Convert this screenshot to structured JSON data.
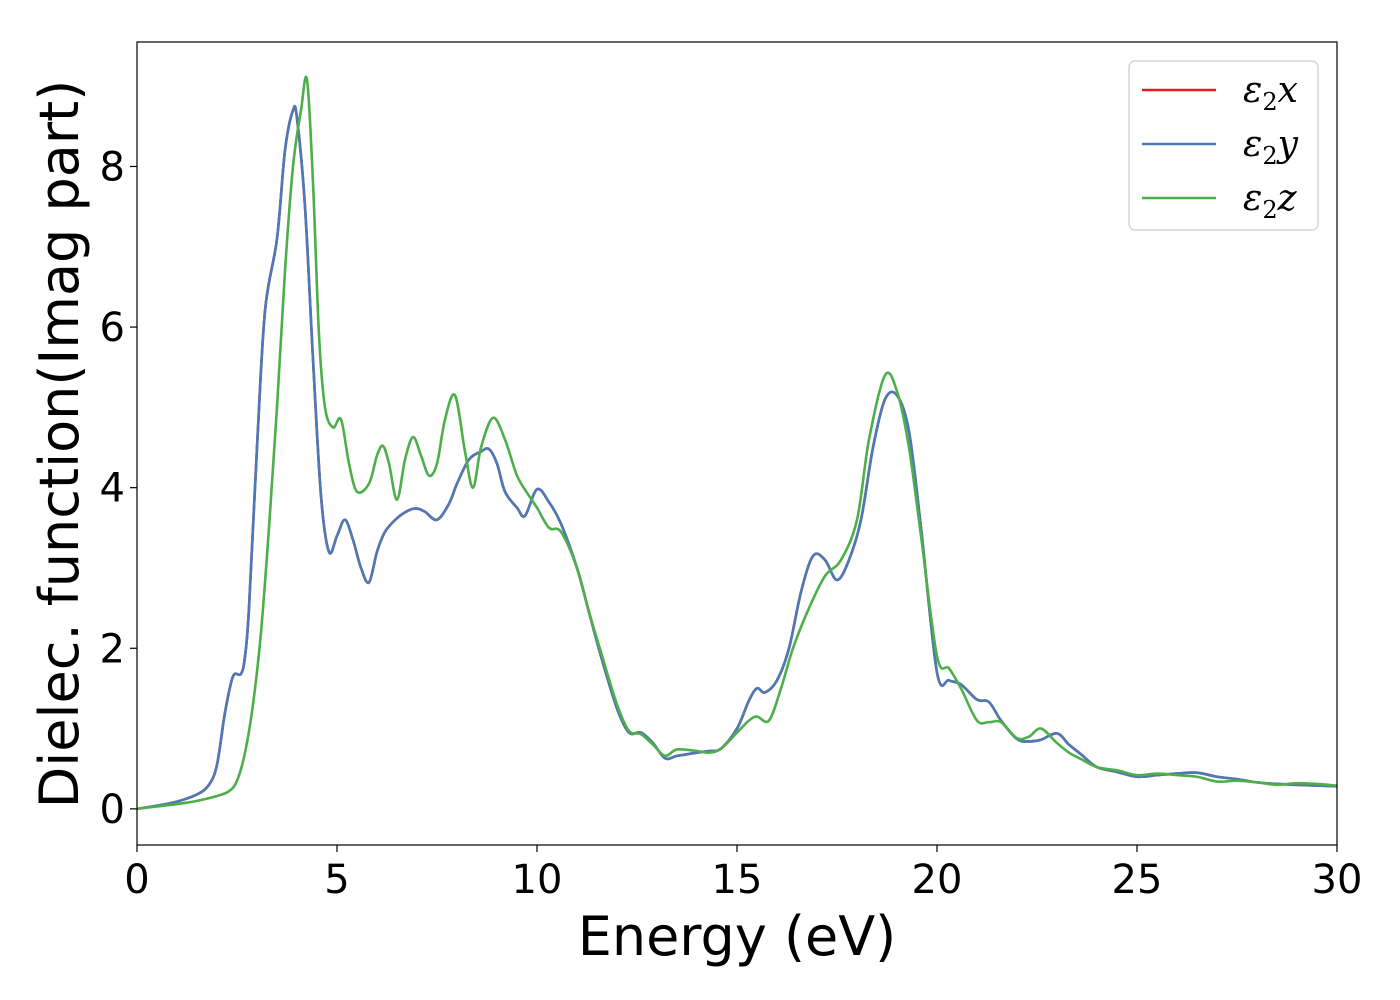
{
  "chart_data": {
    "type": "line",
    "title": "",
    "xlabel": "Energy (eV)",
    "ylabel": "Dielec. function(Imag part)",
    "xlim": [
      0,
      30
    ],
    "ylim": [
      -0.45,
      9.55
    ],
    "xticks": [
      0,
      5,
      10,
      15,
      20,
      25,
      30
    ],
    "xtick_labels": [
      "0",
      "5",
      "10",
      "15",
      "20",
      "25",
      "30"
    ],
    "yticks": [
      0,
      2,
      4,
      6,
      8
    ],
    "ytick_labels": [
      "0",
      "2",
      "4",
      "6",
      "8"
    ],
    "grid": false,
    "legend_position": "top-right",
    "series": [
      {
        "name": "ε2x",
        "legend_base": "ε",
        "legend_sub": "2",
        "legend_var": "x",
        "color": "#e41a1c",
        "x": [
          0,
          0.5,
          1.0,
          1.5,
          1.8,
          2.0,
          2.2,
          2.4,
          2.6,
          2.7,
          2.8,
          3.0,
          3.2,
          3.5,
          3.7,
          3.9,
          4.0,
          4.2,
          4.4,
          4.6,
          4.8,
          5.0,
          5.2,
          5.4,
          5.6,
          5.8,
          6.0,
          6.2,
          6.5,
          6.8,
          7.0,
          7.2,
          7.5,
          7.8,
          8.0,
          8.3,
          8.6,
          8.8,
          9.0,
          9.2,
          9.5,
          9.7,
          10.0,
          10.3,
          10.6,
          11.0,
          11.3,
          11.6,
          12.0,
          12.3,
          12.6,
          12.9,
          13.2,
          13.5,
          14.0,
          14.3,
          14.6,
          15.0,
          15.3,
          15.5,
          15.7,
          16.0,
          16.3,
          16.6,
          16.9,
          17.2,
          17.5,
          17.8,
          18.1,
          18.4,
          18.7,
          19.0,
          19.3,
          19.6,
          20.0,
          20.3,
          20.6,
          21.0,
          21.3,
          21.6,
          22.0,
          22.3,
          22.6,
          23.0,
          23.3,
          23.6,
          24.0,
          24.5,
          25.0,
          25.5,
          26.0,
          26.5,
          27.0,
          27.5,
          28.0,
          28.5,
          29.0,
          29.5,
          30.0
        ],
        "y": [
          0.0,
          0.04,
          0.09,
          0.18,
          0.3,
          0.55,
          1.2,
          1.65,
          1.68,
          1.9,
          2.5,
          4.5,
          6.2,
          7.1,
          8.2,
          8.7,
          8.6,
          7.5,
          5.6,
          3.9,
          3.2,
          3.4,
          3.6,
          3.35,
          3.0,
          2.82,
          3.2,
          3.45,
          3.62,
          3.72,
          3.74,
          3.7,
          3.6,
          3.8,
          4.05,
          4.35,
          4.45,
          4.48,
          4.3,
          3.95,
          3.75,
          3.65,
          3.98,
          3.82,
          3.55,
          3.0,
          2.45,
          1.9,
          1.25,
          0.95,
          0.95,
          0.82,
          0.63,
          0.66,
          0.7,
          0.72,
          0.75,
          1.0,
          1.35,
          1.5,
          1.45,
          1.6,
          2.0,
          2.7,
          3.15,
          3.1,
          2.85,
          3.1,
          3.6,
          4.5,
          5.1,
          5.15,
          4.7,
          3.5,
          1.7,
          1.6,
          1.55,
          1.36,
          1.33,
          1.1,
          0.87,
          0.84,
          0.86,
          0.94,
          0.8,
          0.68,
          0.52,
          0.46,
          0.4,
          0.42,
          0.44,
          0.45,
          0.4,
          0.37,
          0.33,
          0.31,
          0.3,
          0.29,
          0.28
        ]
      },
      {
        "name": "ε2y",
        "legend_base": "ε",
        "legend_sub": "2",
        "legend_var": "y",
        "color": "#4a7ab7",
        "x": [
          0,
          0.5,
          1.0,
          1.5,
          1.8,
          2.0,
          2.2,
          2.4,
          2.6,
          2.7,
          2.8,
          3.0,
          3.2,
          3.5,
          3.7,
          3.9,
          4.0,
          4.2,
          4.4,
          4.6,
          4.8,
          5.0,
          5.2,
          5.4,
          5.6,
          5.8,
          6.0,
          6.2,
          6.5,
          6.8,
          7.0,
          7.2,
          7.5,
          7.8,
          8.0,
          8.3,
          8.6,
          8.8,
          9.0,
          9.2,
          9.5,
          9.7,
          10.0,
          10.3,
          10.6,
          11.0,
          11.3,
          11.6,
          12.0,
          12.3,
          12.6,
          12.9,
          13.2,
          13.5,
          14.0,
          14.3,
          14.6,
          15.0,
          15.3,
          15.5,
          15.7,
          16.0,
          16.3,
          16.6,
          16.9,
          17.2,
          17.5,
          17.8,
          18.1,
          18.4,
          18.7,
          19.0,
          19.3,
          19.6,
          20.0,
          20.3,
          20.6,
          21.0,
          21.3,
          21.6,
          22.0,
          22.3,
          22.6,
          23.0,
          23.3,
          23.6,
          24.0,
          24.5,
          25.0,
          25.5,
          26.0,
          26.5,
          27.0,
          27.5,
          28.0,
          28.5,
          29.0,
          29.5,
          30.0
        ],
        "y": [
          0.0,
          0.04,
          0.09,
          0.18,
          0.3,
          0.55,
          1.2,
          1.65,
          1.68,
          1.9,
          2.5,
          4.5,
          6.2,
          7.1,
          8.2,
          8.7,
          8.6,
          7.5,
          5.6,
          3.9,
          3.2,
          3.4,
          3.6,
          3.35,
          3.0,
          2.82,
          3.2,
          3.45,
          3.62,
          3.72,
          3.74,
          3.7,
          3.6,
          3.8,
          4.05,
          4.35,
          4.45,
          4.48,
          4.3,
          3.95,
          3.75,
          3.65,
          3.98,
          3.82,
          3.55,
          3.0,
          2.45,
          1.9,
          1.25,
          0.95,
          0.95,
          0.82,
          0.63,
          0.66,
          0.7,
          0.72,
          0.75,
          1.0,
          1.35,
          1.5,
          1.45,
          1.6,
          2.0,
          2.7,
          3.15,
          3.1,
          2.85,
          3.1,
          3.6,
          4.5,
          5.1,
          5.15,
          4.7,
          3.5,
          1.7,
          1.6,
          1.55,
          1.36,
          1.33,
          1.1,
          0.87,
          0.84,
          0.86,
          0.94,
          0.8,
          0.68,
          0.52,
          0.46,
          0.4,
          0.42,
          0.44,
          0.45,
          0.4,
          0.37,
          0.33,
          0.31,
          0.3,
          0.29,
          0.28
        ]
      },
      {
        "name": "ε2z",
        "legend_base": "ε",
        "legend_sub": "2",
        "legend_var": "z",
        "color": "#4daf4a",
        "x": [
          0,
          0.5,
          1.0,
          1.5,
          2.0,
          2.3,
          2.5,
          2.7,
          2.9,
          3.1,
          3.3,
          3.5,
          3.7,
          3.9,
          4.1,
          4.25,
          4.4,
          4.55,
          4.7,
          4.9,
          5.1,
          5.3,
          5.5,
          5.8,
          6.0,
          6.15,
          6.3,
          6.5,
          6.7,
          6.9,
          7.1,
          7.3,
          7.5,
          7.7,
          7.95,
          8.2,
          8.4,
          8.6,
          8.9,
          9.2,
          9.5,
          9.8,
          10.0,
          10.3,
          10.6,
          11.0,
          11.3,
          11.6,
          12.0,
          12.3,
          12.6,
          12.9,
          13.2,
          13.5,
          14.0,
          14.3,
          14.6,
          15.0,
          15.3,
          15.5,
          15.8,
          16.1,
          16.4,
          16.8,
          17.2,
          17.6,
          18.0,
          18.3,
          18.7,
          19.0,
          19.3,
          19.6,
          20.0,
          20.3,
          20.6,
          21.0,
          21.3,
          21.6,
          22.0,
          22.3,
          22.6,
          23.0,
          23.3,
          23.6,
          24.0,
          24.5,
          25.0,
          25.5,
          26.0,
          26.5,
          27.0,
          27.5,
          28.0,
          28.5,
          29.0,
          29.5,
          30.0
        ],
        "y": [
          0.0,
          0.03,
          0.06,
          0.1,
          0.16,
          0.22,
          0.35,
          0.7,
          1.3,
          2.2,
          3.5,
          5.0,
          6.7,
          8.0,
          8.7,
          9.08,
          7.8,
          5.9,
          5.0,
          4.75,
          4.85,
          4.3,
          3.95,
          4.05,
          4.4,
          4.52,
          4.3,
          3.85,
          4.35,
          4.63,
          4.4,
          4.15,
          4.3,
          4.85,
          5.15,
          4.45,
          4.0,
          4.5,
          4.87,
          4.6,
          4.15,
          3.9,
          3.75,
          3.5,
          3.45,
          3.0,
          2.45,
          1.95,
          1.3,
          0.97,
          0.93,
          0.8,
          0.66,
          0.74,
          0.72,
          0.7,
          0.75,
          0.95,
          1.1,
          1.15,
          1.1,
          1.5,
          2.0,
          2.5,
          2.9,
          3.1,
          3.6,
          4.6,
          5.4,
          5.2,
          4.5,
          3.4,
          1.9,
          1.75,
          1.5,
          1.1,
          1.08,
          1.08,
          0.88,
          0.9,
          1.0,
          0.82,
          0.7,
          0.62,
          0.52,
          0.48,
          0.42,
          0.44,
          0.42,
          0.4,
          0.34,
          0.35,
          0.33,
          0.3,
          0.32,
          0.31,
          0.29
        ]
      }
    ]
  }
}
